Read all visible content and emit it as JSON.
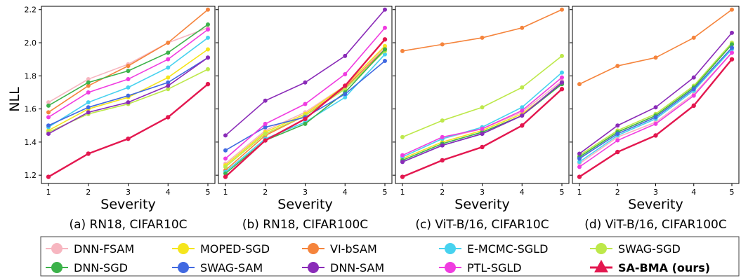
{
  "figure": {
    "ylabel": "NLL",
    "legend": [
      {
        "name": "DNN-FSAM",
        "color": "#f7b6c0",
        "marker": "circle"
      },
      {
        "name": "MOPED-SGD",
        "color": "#f5e51d",
        "marker": "circle"
      },
      {
        "name": "VI-bSAM",
        "color": "#f5843c",
        "marker": "circle"
      },
      {
        "name": "E-MCMC-SGLD",
        "color": "#47d2ef",
        "marker": "circle"
      },
      {
        "name": "SWAG-SGD",
        "color": "#bde84a",
        "marker": "circle"
      },
      {
        "name": "DNN-SGD",
        "color": "#3cb24a",
        "marker": "circle"
      },
      {
        "name": "SWAG-SAM",
        "color": "#4169e1",
        "marker": "circle"
      },
      {
        "name": "DNN-SAM",
        "color": "#8a2bb8",
        "marker": "circle"
      },
      {
        "name": "PTL-SGLD",
        "color": "#f03ce0",
        "marker": "circle"
      },
      {
        "name": "SA-BMA (ours)",
        "color": "#e3174f",
        "marker": "triangle",
        "bold": true
      }
    ]
  },
  "chart_data": [
    {
      "type": "line",
      "caption": "(a) RN18, CIFAR10C",
      "xlabel": "Severity",
      "ylabel": "NLL",
      "x": [
        1,
        2,
        3,
        4,
        5
      ],
      "ylim": [
        1.15,
        2.22
      ],
      "yticks": [
        1.2,
        1.4,
        1.6,
        1.8,
        2.0,
        2.2
      ],
      "series": [
        {
          "name": "DNN-FSAM",
          "values": [
            1.64,
            1.78,
            1.87,
            2.0,
            2.09
          ]
        },
        {
          "name": "MOPED-SGD",
          "values": [
            1.47,
            1.6,
            1.67,
            1.79,
            1.96
          ]
        },
        {
          "name": "VI-bSAM",
          "values": [
            1.58,
            1.74,
            1.86,
            2.0,
            2.2
          ]
        },
        {
          "name": "E-MCMC-SGLD",
          "values": [
            1.49,
            1.64,
            1.73,
            1.85,
            2.03
          ]
        },
        {
          "name": "SWAG-SGD",
          "values": [
            1.46,
            1.57,
            1.63,
            1.72,
            1.84
          ]
        },
        {
          "name": "DNN-SGD",
          "values": [
            1.62,
            1.76,
            1.83,
            1.94,
            2.11
          ]
        },
        {
          "name": "SWAG-SAM",
          "values": [
            1.5,
            1.61,
            1.68,
            1.76,
            1.91
          ]
        },
        {
          "name": "DNN-SAM",
          "values": [
            1.45,
            1.58,
            1.64,
            1.74,
            1.91
          ]
        },
        {
          "name": "PTL-SGLD",
          "values": [
            1.55,
            1.7,
            1.78,
            1.9,
            2.08
          ]
        },
        {
          "name": "SA-BMA (ours)",
          "values": [
            1.19,
            1.33,
            1.42,
            1.55,
            1.75
          ]
        }
      ]
    },
    {
      "type": "line",
      "caption": "(b) RN18, CIFAR100C",
      "xlabel": "Severity",
      "x": [
        1,
        2,
        3,
        4,
        5
      ],
      "ylim": [
        1.15,
        2.22
      ],
      "series": [
        {
          "name": "DNN-FSAM",
          "values": [
            1.27,
            1.47,
            1.58,
            1.74,
            1.97
          ]
        },
        {
          "name": "MOPED-SGD",
          "values": [
            1.26,
            1.46,
            1.57,
            1.74,
            1.98
          ]
        },
        {
          "name": "VI-bSAM",
          "values": [
            1.23,
            1.44,
            1.56,
            1.73,
            1.96
          ]
        },
        {
          "name": "E-MCMC-SGLD",
          "values": [
            1.22,
            1.42,
            1.52,
            1.67,
            1.93
          ]
        },
        {
          "name": "SWAG-SGD",
          "values": [
            1.25,
            1.45,
            1.56,
            1.72,
            1.95
          ]
        },
        {
          "name": "DNN-SGD",
          "values": [
            1.21,
            1.41,
            1.51,
            1.7,
            1.96
          ]
        },
        {
          "name": "SWAG-SAM",
          "values": [
            1.35,
            1.49,
            1.55,
            1.69,
            1.89
          ]
        },
        {
          "name": "DNN-SAM",
          "values": [
            1.44,
            1.65,
            1.76,
            1.92,
            2.2
          ]
        },
        {
          "name": "PTL-SGLD",
          "values": [
            1.3,
            1.51,
            1.63,
            1.81,
            2.09
          ]
        },
        {
          "name": "SA-BMA (ours)",
          "values": [
            1.19,
            1.41,
            1.54,
            1.74,
            2.02
          ]
        }
      ]
    },
    {
      "type": "line",
      "caption": "(c) ViT-B/16, CIFAR10C",
      "xlabel": "Severity",
      "x": [
        1,
        2,
        3,
        4,
        5
      ],
      "ylim": [
        1.15,
        2.22
      ],
      "series": [
        {
          "name": "DNN-FSAM",
          "values": [
            1.31,
            1.42,
            1.48,
            1.58,
            1.77
          ]
        },
        {
          "name": "MOPED-SGD",
          "values": [
            1.3,
            1.4,
            1.47,
            1.57,
            1.75
          ]
        },
        {
          "name": "VI-bSAM",
          "values": [
            1.95,
            1.99,
            2.03,
            2.09,
            2.2
          ]
        },
        {
          "name": "E-MCMC-SGLD",
          "values": [
            1.31,
            1.42,
            1.49,
            1.61,
            1.82
          ]
        },
        {
          "name": "SWAG-SGD",
          "values": [
            1.43,
            1.53,
            1.61,
            1.73,
            1.92
          ]
        },
        {
          "name": "DNN-SGD",
          "values": [
            1.29,
            1.39,
            1.46,
            1.56,
            1.75
          ]
        },
        {
          "name": "SWAG-SAM",
          "values": [
            1.28,
            1.38,
            1.45,
            1.56,
            1.76
          ]
        },
        {
          "name": "DNN-SAM",
          "values": [
            1.28,
            1.38,
            1.45,
            1.56,
            1.76
          ]
        },
        {
          "name": "PTL-SGLD",
          "values": [
            1.32,
            1.43,
            1.48,
            1.59,
            1.79
          ]
        },
        {
          "name": "SA-BMA (ours)",
          "values": [
            1.19,
            1.29,
            1.37,
            1.5,
            1.72
          ]
        }
      ]
    },
    {
      "type": "line",
      "caption": "(d) ViT-B/16, CIFAR100C",
      "xlabel": "Severity",
      "x": [
        1,
        2,
        3,
        4,
        5
      ],
      "ylim": [
        1.15,
        2.22
      ],
      "series": [
        {
          "name": "DNN-FSAM",
          "values": [
            1.27,
            1.43,
            1.52,
            1.69,
            1.94
          ]
        },
        {
          "name": "MOPED-SGD",
          "values": [
            1.31,
            1.46,
            1.56,
            1.73,
            1.99
          ]
        },
        {
          "name": "VI-bSAM",
          "values": [
            1.75,
            1.86,
            1.91,
            2.03,
            2.2
          ]
        },
        {
          "name": "E-MCMC-SGLD",
          "values": [
            1.28,
            1.44,
            1.54,
            1.71,
            1.96
          ]
        },
        {
          "name": "SWAG-SGD",
          "values": [
            1.32,
            1.47,
            1.57,
            1.74,
            2.0
          ]
        },
        {
          "name": "DNN-SGD",
          "values": [
            1.31,
            1.46,
            1.56,
            1.73,
            1.99
          ]
        },
        {
          "name": "SWAG-SAM",
          "values": [
            1.3,
            1.45,
            1.55,
            1.72,
            1.97
          ]
        },
        {
          "name": "DNN-SAM",
          "values": [
            1.33,
            1.5,
            1.61,
            1.79,
            2.06
          ]
        },
        {
          "name": "PTL-SGLD",
          "values": [
            1.25,
            1.41,
            1.51,
            1.68,
            1.94
          ]
        },
        {
          "name": "SA-BMA (ours)",
          "values": [
            1.19,
            1.34,
            1.44,
            1.62,
            1.9
          ]
        }
      ]
    }
  ]
}
